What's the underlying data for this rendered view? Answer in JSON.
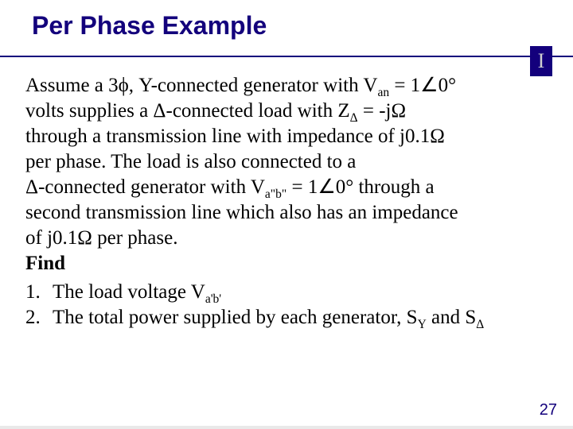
{
  "slide": {
    "title": "Per Phase Example",
    "logo_letter": "I",
    "page_number": "27",
    "colors": {
      "accent": "#13007c",
      "background": "#ffffff",
      "text": "#000000",
      "footer_bar": "#e9e9e9",
      "logo_fg": "#d0d0d0"
    },
    "fonts": {
      "title_family": "Arial",
      "title_size_pt": 24,
      "title_weight": "bold",
      "body_family": "Times New Roman",
      "body_size_pt": 19
    }
  },
  "body": {
    "para_lines": [
      "Assume a 3ϕ, Y-connected generator with V<sub>an</sub> = 1∠0°",
      "volts supplies a Δ-connected load with Z<sub>Δ</sub> = -jΩ",
      "through a transmission line with impedance of j0.1Ω",
      "per phase.  The load is also connected to a",
      "Δ-connected generator with V<sub>a\"b\"</sub> = 1∠0° through a",
      "second transmission line which also has an impedance",
      "of j0.1Ω per phase."
    ],
    "find_label": "Find",
    "items": [
      {
        "num": "1.",
        "text": "The load voltage V<sub>a'b'</sub>"
      },
      {
        "num": "2.",
        "text": "The total power supplied by each generator, S<sub>Y</sub> and S<sub>Δ</sub>"
      }
    ]
  }
}
